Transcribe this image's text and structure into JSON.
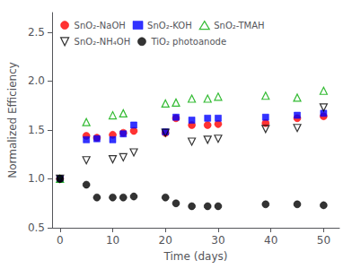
{
  "chart_data": {
    "type": "scatter",
    "xlabel": "Time (days)",
    "ylabel": "Normalized Efficiency",
    "xlim": [
      -1.5,
      53
    ],
    "ylim": [
      0.5,
      2.7
    ],
    "xticks": [
      0,
      10,
      20,
      30,
      40,
      50
    ],
    "yticks": [
      0.5,
      {
        "value": 1.0,
        "label": "1.0"
      },
      1.5,
      {
        "value": 2.0,
        "label": "2.0"
      },
      2.5
    ],
    "grid": false,
    "legend": "upper left",
    "series": [
      {
        "name": "SnO₂-NaOH",
        "color": "red",
        "marker": "circle",
        "x": [
          0,
          5,
          7,
          10,
          12,
          14,
          20,
          22,
          25,
          28,
          30,
          39,
          45,
          50
        ],
        "values": [
          1.0,
          1.44,
          1.42,
          1.45,
          1.47,
          1.49,
          1.47,
          1.62,
          1.55,
          1.55,
          1.56,
          1.57,
          1.62,
          1.64
        ]
      },
      {
        "name": "SnO₂-KOH",
        "color": "blue",
        "marker": "square",
        "x": [
          0,
          5,
          7,
          10,
          12,
          14,
          20,
          22,
          25,
          28,
          30,
          39,
          45,
          50
        ],
        "values": [
          1.0,
          1.4,
          1.41,
          1.4,
          1.46,
          1.55,
          1.48,
          1.63,
          1.6,
          1.62,
          1.62,
          1.63,
          1.65,
          1.67
        ]
      },
      {
        "name": "SnO₂-TMAH",
        "color": "#00aa00",
        "marker": "triangle-open",
        "x": [
          0,
          5,
          10,
          12,
          20,
          22,
          25,
          28,
          30,
          39,
          45,
          50
        ],
        "values": [
          1.0,
          1.58,
          1.65,
          1.67,
          1.77,
          1.78,
          1.82,
          1.82,
          1.84,
          1.85,
          1.83,
          1.9
        ]
      },
      {
        "name": "SnO₂-NH₄OH",
        "color": "black",
        "marker": "triangle-down-open",
        "x": [
          0,
          5,
          10,
          12,
          14,
          20,
          25,
          28,
          30,
          39,
          45,
          50
        ],
        "values": [
          1.0,
          1.19,
          1.2,
          1.22,
          1.27,
          1.47,
          1.38,
          1.4,
          1.41,
          1.51,
          1.52,
          1.73
        ]
      },
      {
        "name": "TiO₂ photoanode",
        "color": "black",
        "marker": "circle",
        "x": [
          0,
          5,
          7,
          10,
          12,
          14,
          20,
          22,
          25,
          28,
          30,
          39,
          45,
          50
        ],
        "values": [
          1.0,
          0.94,
          0.81,
          0.81,
          0.81,
          0.82,
          0.81,
          0.75,
          0.72,
          0.72,
          0.72,
          0.74,
          0.74,
          0.73
        ]
      }
    ]
  }
}
